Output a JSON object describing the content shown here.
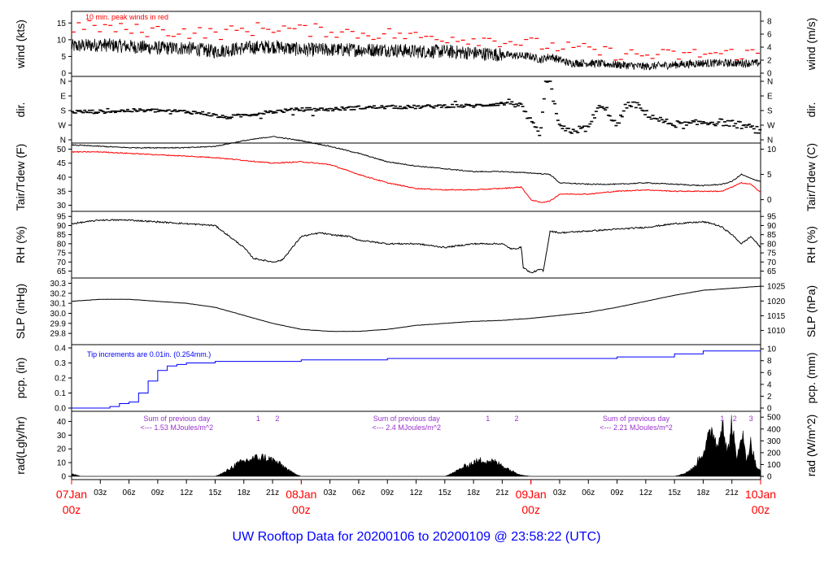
{
  "title": "UW Rooftop Data for 20200106  to  20200109 @ 23:58:22  (UTC)",
  "colors": {
    "axis": "#000000",
    "peak": "#ff0000",
    "dew": "#ff0000",
    "rain": "#0000ff",
    "rad_note": "#9933cc",
    "title": "#0000ff",
    "day_label": "#ff0000"
  },
  "x_axis": {
    "hours_total": 72,
    "tick_step_hours": 3,
    "tick_labels": [
      "03z",
      "06z",
      "09z",
      "12z",
      "15z",
      "18z",
      "21z",
      "",
      "03z",
      "06z",
      "09z",
      "12z",
      "15z",
      "18z",
      "21z",
      "",
      "03z",
      "06z",
      "09z",
      "12z",
      "15z",
      "18z",
      "21z"
    ],
    "day_labels": [
      {
        "hour": 0,
        "date": "07Jan",
        "time": "00z"
      },
      {
        "hour": 24,
        "date": "08Jan",
        "time": "00z"
      },
      {
        "hour": 48,
        "date": "09Jan",
        "time": "00z"
      },
      {
        "hour": 72,
        "date": "10Jan",
        "time": "00z"
      }
    ]
  },
  "panels": [
    {
      "id": "wind",
      "left_label": "wind (kts)",
      "right_label": "wind (m/s)",
      "left_ticks": [
        "0",
        "5",
        "10",
        "15"
      ],
      "right_ticks": [
        "0",
        "2",
        "4",
        "6",
        "8"
      ],
      "note": "10 min. peak winds in red"
    },
    {
      "id": "dir",
      "left_label": "dir.",
      "right_label": "dir.",
      "left_ticks": [
        "N",
        "E",
        "S",
        "W",
        "N"
      ],
      "right_ticks": [
        "N",
        "E",
        "S",
        "W",
        "N"
      ]
    },
    {
      "id": "temp",
      "left_label": "Tair/Tdew (F)",
      "right_label": "Tair/Tdew (C)",
      "left_ticks": [
        "30",
        "35",
        "40",
        "45",
        "50"
      ],
      "right_ticks": [
        "0",
        "5",
        "10"
      ]
    },
    {
      "id": "rh",
      "left_label": "RH (%)",
      "right_label": "RH (%)",
      "left_ticks": [
        "65",
        "70",
        "75",
        "80",
        "85",
        "90",
        "95"
      ],
      "right_ticks": [
        "65",
        "70",
        "75",
        "80",
        "85",
        "90",
        "95"
      ]
    },
    {
      "id": "slp",
      "left_label": "SLP (inHg)",
      "right_label": "SLP (hPa)",
      "left_ticks": [
        "29.8",
        "29.9",
        "30.0",
        "30.1",
        "30.2",
        "30.3"
      ],
      "right_ticks": [
        "1010",
        "1015",
        "1020",
        "1025"
      ]
    },
    {
      "id": "pcp",
      "left_label": "pcp. (in)",
      "right_label": "pcp. (mm)",
      "left_ticks": [
        "0.0",
        "0.1",
        "0.2",
        "0.3",
        "0.4"
      ],
      "right_ticks": [
        "0",
        "2",
        "4",
        "6",
        "8",
        "10"
      ],
      "note": "Tip increments are 0.01in. (0.254mm.)"
    },
    {
      "id": "rad",
      "left_label": "rad(Lgly/hr)",
      "right_label": "rad (W/m^2)",
      "left_ticks": [
        "0",
        "10",
        "20",
        "30",
        "40"
      ],
      "right_ticks": [
        "0",
        "100",
        "200",
        "300",
        "400",
        "500"
      ]
    }
  ],
  "rad_notes": [
    {
      "hour": 11,
      "line1": "Sum of previous day",
      "line2": "<--- 1.53 MJoules/m^2",
      "marks": [
        {
          "hour": 19.5,
          "label": "1"
        },
        {
          "hour": 21.5,
          "label": "2"
        }
      ]
    },
    {
      "hour": 35,
      "line1": "Sum of previous day",
      "line2": "<--- 2.4 MJoules/m^2",
      "marks": [
        {
          "hour": 43.5,
          "label": "1"
        },
        {
          "hour": 46.5,
          "label": "2"
        }
      ]
    },
    {
      "hour": 59,
      "line1": "Sum of previous day",
      "line2": "<--- 2.21 MJoules/m^2",
      "marks": [
        {
          "hour": 68.0,
          "label": "1"
        },
        {
          "hour": 69.3,
          "label": "2"
        },
        {
          "hour": 71.0,
          "label": "3"
        }
      ]
    }
  ],
  "chart_data": {
    "type": "line",
    "x_unit": "hours since 07Jan 00z",
    "series": [
      {
        "panel": "wind",
        "units": "kts",
        "x": [
          0,
          3,
          6,
          9,
          12,
          15,
          18,
          21,
          24,
          27,
          30,
          33,
          36,
          39,
          42,
          45,
          48,
          49,
          50,
          51,
          52,
          54,
          57,
          60,
          63,
          66,
          69,
          72
        ],
        "values": [
          8,
          8.5,
          8,
          7.5,
          7.5,
          6.5,
          7.5,
          8,
          7,
          7,
          7,
          7,
          6.5,
          6.5,
          6,
          5.5,
          5,
          4,
          5,
          4,
          3,
          3,
          2.5,
          2,
          2.5,
          3,
          3,
          3
        ]
      },
      {
        "panel": "wind",
        "units": "kts",
        "style": "peak",
        "x": [
          0,
          3,
          6,
          9,
          12,
          15,
          18,
          21,
          24,
          27,
          30,
          33,
          36,
          39,
          42,
          45,
          48,
          51,
          54,
          57,
          60,
          63,
          66,
          69,
          72
        ],
        "values": [
          13,
          13,
          12,
          12,
          11.5,
          11,
          12,
          13,
          12,
          12,
          11,
          11,
          10,
          10,
          9.5,
          9,
          8,
          7,
          6,
          5,
          4.5,
          4.5,
          5,
          5,
          5
        ]
      },
      {
        "panel": "dir",
        "units": "compass fraction (0=N,0.5=S)",
        "x": [
          0,
          3,
          6,
          9,
          12,
          14,
          16,
          18,
          21,
          24,
          27,
          30,
          33,
          36,
          39,
          42,
          45,
          46,
          47,
          48,
          49,
          49.5,
          50,
          51,
          52,
          54,
          55,
          56,
          57,
          58,
          59,
          60,
          62,
          64,
          66,
          68,
          70,
          71,
          72
        ],
        "values": [
          0.48,
          0.48,
          0.5,
          0.5,
          0.48,
          0.45,
          0.38,
          0.42,
          0.48,
          0.52,
          0.52,
          0.55,
          0.56,
          0.56,
          0.58,
          0.58,
          0.62,
          0.65,
          0.55,
          0.3,
          0.05,
          0.98,
          0.97,
          0.2,
          0.15,
          0.2,
          0.55,
          0.5,
          0.22,
          0.6,
          0.6,
          0.45,
          0.3,
          0.25,
          0.3,
          0.3,
          0.25,
          0.2,
          0.15
        ]
      },
      {
        "panel": "temp",
        "name": "Tair",
        "units": "F",
        "x": [
          0,
          3,
          6,
          9,
          12,
          15,
          18,
          21,
          24,
          27,
          30,
          33,
          36,
          39,
          42,
          45,
          48,
          50,
          51,
          54,
          57,
          60,
          63,
          66,
          68,
          69,
          70,
          71,
          72
        ],
        "values": [
          51.5,
          51,
          50.5,
          50.5,
          50.5,
          51,
          53,
          54.5,
          53,
          51,
          48.5,
          45.5,
          44,
          43,
          42,
          42,
          41.5,
          41,
          38,
          37.5,
          37.5,
          38,
          37.5,
          37,
          37.5,
          38.5,
          41,
          39.5,
          38.5
        ]
      },
      {
        "panel": "temp",
        "name": "Tdew",
        "units": "F",
        "x": [
          0,
          3,
          6,
          9,
          12,
          15,
          18,
          21,
          24,
          27,
          30,
          33,
          36,
          39,
          42,
          45,
          47,
          48,
          49,
          50,
          51,
          54,
          57,
          60,
          63,
          66,
          68,
          69,
          70,
          71,
          72
        ],
        "values": [
          49,
          49,
          48.5,
          48,
          47.5,
          47,
          46,
          45,
          45.5,
          44.5,
          41,
          38,
          36,
          35.5,
          35.5,
          36,
          36.5,
          32,
          31,
          31.5,
          34,
          34,
          35,
          35.5,
          35,
          35,
          35,
          36.5,
          38,
          37.5,
          34.5
        ]
      },
      {
        "panel": "rh",
        "units": "%",
        "x": [
          0,
          3,
          6,
          9,
          12,
          15,
          16,
          18,
          19,
          21,
          22,
          24,
          26,
          27,
          29,
          30,
          33,
          36,
          39,
          42,
          45,
          46,
          47,
          47.2,
          48,
          49,
          49.3,
          50,
          51,
          54,
          57,
          60,
          63,
          66,
          67,
          68,
          69,
          70,
          71,
          72
        ],
        "values": [
          91,
          93,
          93,
          92,
          91,
          90,
          86,
          78,
          72,
          70,
          71,
          84,
          86,
          85,
          84,
          82,
          80,
          80,
          78,
          80,
          80,
          77,
          78,
          67,
          64,
          66,
          65,
          87,
          86,
          87,
          88,
          89,
          91,
          92,
          91,
          89,
          85,
          80,
          84,
          78
        ]
      },
      {
        "panel": "slp",
        "units": "inHg",
        "x": [
          0,
          3,
          6,
          9,
          12,
          15,
          18,
          21,
          24,
          27,
          30,
          33,
          36,
          39,
          42,
          45,
          48,
          51,
          54,
          57,
          60,
          63,
          66,
          69,
          72
        ],
        "values": [
          30.12,
          30.14,
          30.14,
          30.12,
          30.1,
          30.06,
          29.98,
          29.9,
          29.84,
          29.82,
          29.82,
          29.84,
          29.88,
          29.9,
          29.92,
          29.93,
          29.95,
          29.98,
          30.01,
          30.06,
          30.12,
          30.18,
          30.23,
          30.25,
          30.27
        ]
      },
      {
        "panel": "pcp",
        "units": "in",
        "x": [
          0,
          3,
          4,
          5,
          6,
          7,
          8,
          9,
          10,
          11,
          12,
          15,
          18,
          21,
          24,
          27,
          30,
          33,
          36,
          39,
          42,
          45,
          48,
          51,
          54,
          57,
          60,
          63,
          66,
          69,
          72
        ],
        "values": [
          0,
          0,
          0.01,
          0.03,
          0.04,
          0.1,
          0.18,
          0.25,
          0.28,
          0.29,
          0.3,
          0.31,
          0.31,
          0.31,
          0.32,
          0.32,
          0.32,
          0.33,
          0.33,
          0.33,
          0.33,
          0.33,
          0.33,
          0.33,
          0.33,
          0.34,
          0.34,
          0.36,
          0.38,
          0.38,
          0.38
        ]
      },
      {
        "panel": "rad",
        "units": "Lgly/hr",
        "x": [
          0,
          0.5,
          1,
          15,
          16,
          17,
          18,
          19,
          20,
          21,
          22,
          23,
          24,
          39,
          40,
          41,
          42,
          43,
          44,
          45,
          46,
          47,
          48,
          63,
          64,
          65,
          66,
          67,
          67.5,
          68,
          68.5,
          69,
          69.5,
          70,
          70.5,
          71,
          71.5,
          72
        ],
        "values": [
          2,
          1,
          0,
          0,
          3,
          8,
          11,
          13,
          14,
          12,
          8,
          3,
          0,
          0,
          3,
          7,
          10,
          12,
          11,
          8,
          4,
          1,
          0,
          0,
          2,
          6,
          18,
          35,
          20,
          45,
          15,
          40,
          10,
          35,
          12,
          25,
          8,
          3
        ]
      }
    ]
  }
}
